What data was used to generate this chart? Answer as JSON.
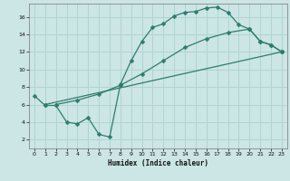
{
  "xlabel": "Humidex (Indice chaleur)",
  "xlim": [
    -0.5,
    23.5
  ],
  "ylim": [
    1.0,
    17.5
  ],
  "yticks": [
    2,
    4,
    6,
    8,
    10,
    12,
    14,
    16
  ],
  "xticks": [
    0,
    1,
    2,
    3,
    4,
    5,
    6,
    7,
    8,
    9,
    10,
    11,
    12,
    13,
    14,
    15,
    16,
    17,
    18,
    19,
    20,
    21,
    22,
    23
  ],
  "bg_color": "#cce5e5",
  "grid_color": "#b0d4d4",
  "line_color": "#2d7d6e",
  "line1_x": [
    0,
    1,
    2,
    3,
    4,
    5,
    6,
    7,
    8,
    9,
    10,
    11,
    12,
    13,
    14,
    15,
    16,
    17,
    18,
    19,
    20,
    21,
    22,
    23
  ],
  "line1_y": [
    7.0,
    5.9,
    5.9,
    4.0,
    3.8,
    4.5,
    2.6,
    2.3,
    8.3,
    11.0,
    13.2,
    14.8,
    15.2,
    16.1,
    16.5,
    16.6,
    17.0,
    17.1,
    16.5,
    15.1,
    14.6,
    13.2,
    12.8,
    12.0
  ],
  "line2_x": [
    1,
    23
  ],
  "line2_y": [
    6.0,
    12.0
  ],
  "line3_x": [
    2,
    4,
    6,
    8,
    10,
    12,
    14,
    16,
    18,
    20,
    21,
    22,
    23
  ],
  "line3_y": [
    6.0,
    6.5,
    7.2,
    8.2,
    9.5,
    11.0,
    12.5,
    13.5,
    14.2,
    14.6,
    13.2,
    12.8,
    12.0
  ],
  "markersize": 2.5,
  "linewidth": 0.9
}
